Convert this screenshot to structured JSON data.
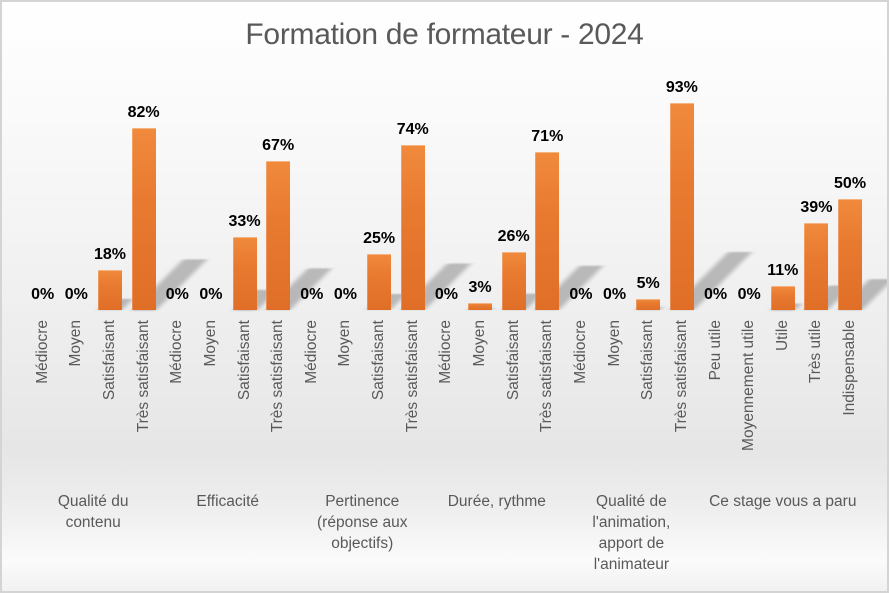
{
  "title": "Formation de formateur - 2024",
  "chart_data": {
    "type": "bar",
    "title": "Formation de formateur - 2024",
    "unit_suffix": "%",
    "ylim": [
      0,
      100
    ],
    "grid": false,
    "legend": "none",
    "bar_color": "#E8782E",
    "data_label_color": "#000000",
    "axis_text_color": "#595959",
    "title_color": "#595959",
    "groups": [
      {
        "label": "Qualité du contenu",
        "categories": [
          "Médiocre",
          "Moyen",
          "Satisfaisant",
          "Très satisfaisant"
        ],
        "values": [
          0,
          0,
          18,
          82
        ]
      },
      {
        "label": "Efficacité",
        "categories": [
          "Médiocre",
          "Moyen",
          "Satisfaisant",
          "Très satisfaisant"
        ],
        "values": [
          0,
          0,
          33,
          67
        ]
      },
      {
        "label": "Pertinence (réponse aux objectifs)",
        "categories": [
          "Médiocre",
          "Moyen",
          "Satisfaisant",
          "Très satisfaisant"
        ],
        "values": [
          0,
          0,
          25,
          74
        ]
      },
      {
        "label": "Durée, rythme",
        "categories": [
          "Médiocre",
          "Moyen",
          "Satisfaisant",
          "Très satisfaisant"
        ],
        "values": [
          0,
          3,
          26,
          71
        ]
      },
      {
        "label": "Qualité de l'animation, apport de l'animateur",
        "categories": [
          "Médiocre",
          "Moyen",
          "Satisfaisant",
          "Très satisfaisant"
        ],
        "values": [
          0,
          0,
          5,
          93
        ]
      },
      {
        "label": "Ce stage vous a paru",
        "categories": [
          "Peu utile",
          "Moyennement utile",
          "Utile",
          "Très utile",
          "Indispensable"
        ],
        "values": [
          0,
          0,
          11,
          39,
          50
        ]
      }
    ]
  }
}
